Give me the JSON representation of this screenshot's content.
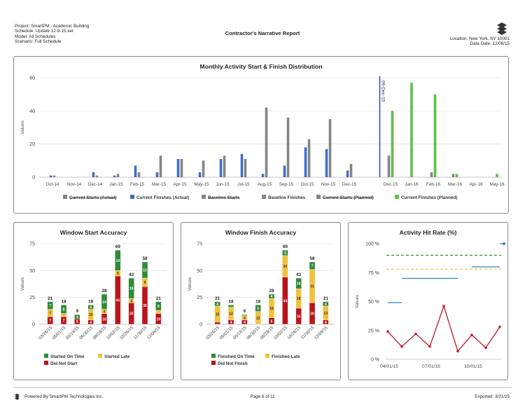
{
  "header": {
    "project": "Project: SmartPM - Academic Building",
    "schedule": "Schedule: Update 12-9-15.xer",
    "model": "Model: All Schedules",
    "scenario": "Scenario: Full Schedule",
    "title": "Contractor's Narrative Report",
    "location": "Location: New York, NY 10001",
    "data_date": "Data Date: 12/09/15"
  },
  "footer": {
    "powered_by": "Powered By SmartPM Technologies Inc.",
    "page": "Page 6 of 11",
    "exported": "Exported: 3/21/25"
  },
  "colors": {
    "blue": "#3f6fc7",
    "gray": "#858585",
    "green": "#5fbf45",
    "dark_green": "#2f8a3a",
    "yellow": "#f2c23e",
    "red": "#b8151c",
    "teal": "#2b86c4",
    "hit_red": "#c01a2c"
  },
  "chart_data": [
    {
      "type": "bar",
      "title": "Monthly Activity Start & Finish Distribution",
      "ylabel": "Values",
      "ylim": [
        0,
        60
      ],
      "yticks": [
        0,
        20,
        40,
        60
      ],
      "categories": [
        "Oct-14",
        "Nov-14",
        "Dec-14",
        "Jan-15",
        "Feb-15",
        "Mar-15",
        "Apr-15",
        "May-15",
        "Jun-15",
        "Jul-15",
        "Aug-15",
        "Sep-15",
        "Oct-15",
        "Nov-15",
        "Dec-15",
        "Dec-15",
        "Jan-16",
        "Feb-16",
        "Mar-16",
        "Apr-16",
        "May-16"
      ],
      "data_date_label": "09-Dec-15",
      "series": [
        {
          "name": "Current Starts (Actual)",
          "strikethrough": true,
          "color": "#858585",
          "values": [
            0,
            0,
            0,
            0,
            0,
            0,
            0,
            0,
            0,
            0,
            0,
            0,
            0,
            0,
            0,
            0,
            0,
            0,
            0,
            0,
            0
          ]
        },
        {
          "name": "Current Finishes (Actual)",
          "strikethrough": false,
          "color": "#3f6fc7",
          "values": [
            1,
            0,
            3,
            1,
            7,
            3,
            11,
            3,
            11,
            14,
            2,
            7,
            18,
            17,
            4,
            0,
            0,
            0,
            0,
            0,
            0
          ]
        },
        {
          "name": "Baseline Starts",
          "strikethrough": true,
          "color": "#858585",
          "values": [
            0,
            0,
            0,
            0,
            0,
            0,
            0,
            0,
            0,
            0,
            0,
            0,
            0,
            0,
            0,
            0,
            0,
            0,
            0,
            0,
            0
          ]
        },
        {
          "name": "Baseline Finishes",
          "strikethrough": false,
          "color": "#858585",
          "values": [
            1,
            0,
            1,
            2,
            3,
            13,
            11,
            10,
            13,
            11,
            42,
            36,
            23,
            35,
            8,
            13,
            0,
            3,
            2,
            0,
            0
          ]
        },
        {
          "name": "Current Starts (Planned)",
          "strikethrough": true,
          "color": "#858585",
          "values": [
            0,
            0,
            0,
            0,
            0,
            0,
            0,
            0,
            0,
            0,
            0,
            0,
            0,
            0,
            0,
            0,
            0,
            0,
            0,
            0,
            0
          ]
        },
        {
          "name": "Current Finishes (Planned)",
          "strikethrough": false,
          "color": "#5fbf45",
          "values": [
            0,
            0,
            0,
            0,
            0,
            0,
            0,
            0,
            0,
            0,
            0,
            0,
            0,
            0,
            0,
            40,
            57,
            50,
            2,
            0,
            2
          ]
        }
      ]
    },
    {
      "type": "bar",
      "stacked": true,
      "title": "Window Start Accuracy",
      "ylabel": "Values",
      "ylim": [
        0,
        75
      ],
      "yticks": [
        0,
        25,
        50,
        75
      ],
      "categories": [
        "03/26/15",
        "05/01/15",
        "05/19/15",
        "06/30/15",
        "08/28/15",
        "10/02/15",
        "10/26/15",
        "11/30/15",
        "12/09/15"
      ],
      "totals": [
        21,
        18,
        9,
        18,
        28,
        69,
        43,
        58,
        21
      ],
      "series": [
        {
          "name": "Did Not Start",
          "color": "#b8151c",
          "values": [
            7,
            7,
            5,
            4,
            10,
            45,
            20,
            35,
            10
          ]
        },
        {
          "name": "Started Late",
          "color": "#f2c23e",
          "values": [
            7,
            3,
            0,
            10,
            4,
            5,
            4,
            8,
            3
          ]
        },
        {
          "name": "Started On Time",
          "color": "#2f8a3a",
          "values": [
            7,
            8,
            4,
            4,
            14,
            19,
            19,
            15,
            8
          ]
        }
      ],
      "legend": [
        "Started On Time",
        "Started Late",
        "Did Not Start"
      ]
    },
    {
      "type": "bar",
      "stacked": true,
      "title": "Window Finish Accuracy",
      "ylabel": "Values",
      "ylim": [
        0,
        75
      ],
      "yticks": [
        0,
        25,
        50,
        75
      ],
      "categories": [
        "03/26/15",
        "05/01/15",
        "05/19/15",
        "06/30/15",
        "08/28/15",
        "10/02/15",
        "10/26/15",
        "11/30/15",
        "12/09/15"
      ],
      "totals": [
        21,
        18,
        9,
        18,
        28,
        69,
        43,
        58,
        21
      ],
      "series": [
        {
          "name": "Did Not Finish",
          "color": "#b8151c",
          "values": [
            2,
            4,
            4,
            0,
            6,
            44,
            15,
            20,
            4
          ]
        },
        {
          "name": "Finished Late",
          "color": "#f2c23e",
          "values": [
            15,
            12,
            4,
            12,
            18,
            20,
            18,
            31,
            13
          ]
        },
        {
          "name": "Finished On Time",
          "color": "#2f8a3a",
          "values": [
            4,
            2,
            1,
            6,
            4,
            5,
            10,
            7,
            4
          ]
        }
      ],
      "legend": [
        "Finished On Time",
        "Finished Late",
        "Did Not Finish"
      ]
    },
    {
      "type": "line",
      "title": "Activity Hit Rate (%)",
      "ylabel": "Values",
      "ylim": [
        0,
        100
      ],
      "yticks": [
        "0 %",
        "25 %",
        "50 %",
        "75 %",
        "100 %"
      ],
      "xticks": [
        "04/01/15",
        "07/01/15",
        "10/01/15"
      ],
      "hit_rate": [
        24,
        11,
        22,
        11,
        46,
        7,
        21,
        10,
        28
      ],
      "reference_lines": [
        {
          "color": "#2f8a3a",
          "dashed": true,
          "value": 90
        },
        {
          "color": "#f2c23e",
          "dashed": true,
          "value": 78
        }
      ],
      "steps": [
        {
          "value": 49,
          "from": 0,
          "to": 1
        },
        {
          "value": 70,
          "from": 1,
          "to": 5
        },
        {
          "value": 80,
          "from": 6,
          "to": 8
        },
        {
          "value": 100,
          "from": 8,
          "to": 8
        }
      ]
    }
  ]
}
